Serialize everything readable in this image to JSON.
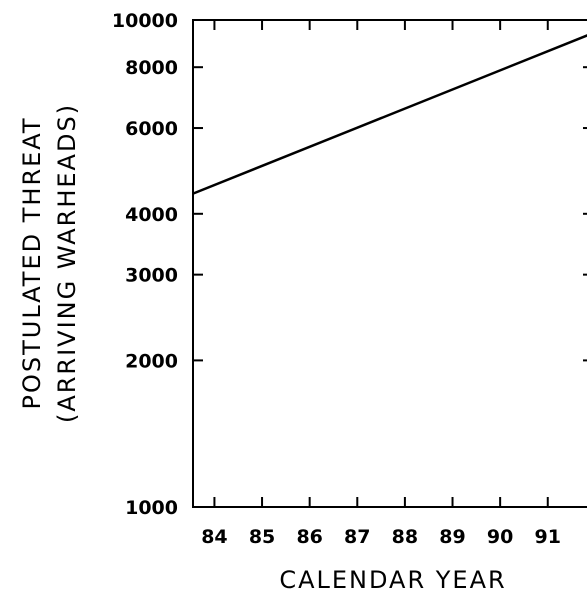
{
  "chart_data": {
    "type": "line",
    "title": "",
    "xlabel": "CALENDAR YEAR",
    "ylabel_lines": [
      "POSTULATED THREAT",
      "(ARRIVING WARHEADS)"
    ],
    "x_ticks": [
      "84",
      "85",
      "86",
      "87",
      "88",
      "89",
      "90",
      "91"
    ],
    "y_scale": "log",
    "y_ticks": [
      {
        "value": 1000,
        "label": "1000"
      },
      {
        "value": 2000,
        "label": "2000"
      },
      {
        "value": 3000,
        "label": "3000"
      },
      {
        "value": 4000,
        "label": "4000"
      },
      {
        "value": 6000,
        "label": "6000"
      },
      {
        "value": 8000,
        "label": "8000"
      },
      {
        "value": 10000,
        "label": "10000"
      }
    ],
    "xlim": [
      83.55,
      91.95
    ],
    "ylim": [
      1000,
      10000
    ],
    "grid": false,
    "series": [
      {
        "x": [
          83.55,
          91.95
        ],
        "y": [
          4400,
          9400
        ]
      }
    ]
  }
}
